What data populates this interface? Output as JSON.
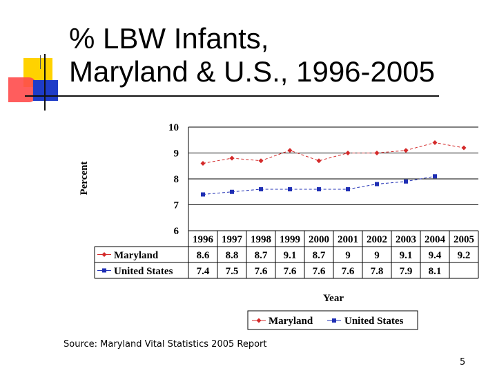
{
  "slide": {
    "title_line1": "% LBW Infants,",
    "title_line2": "Maryland & U.S., 1996-2005",
    "source": "Source:  Maryland Vital Statistics 2005 Report",
    "page_number": "5"
  },
  "chart_data": {
    "type": "line",
    "title": "",
    "xlabel": "Year",
    "ylabel": "Percent",
    "ylim": [
      6,
      10
    ],
    "yticks": [
      "6",
      "7",
      "8",
      "9",
      "10"
    ],
    "grid": true,
    "categories": [
      "1996",
      "1997",
      "1998",
      "1999",
      "2000",
      "2001",
      "2002",
      "2003",
      "2004",
      "2005"
    ],
    "series": [
      {
        "name": "Maryland",
        "color": "#d42a2a",
        "marker": "diamond",
        "values": [
          8.6,
          8.8,
          8.7,
          9.1,
          8.7,
          9.0,
          9.0,
          9.1,
          9.4,
          9.2
        ],
        "labels": [
          "8.6",
          "8.8",
          "8.7",
          "9.1",
          "8.7",
          "9",
          "9",
          "9.1",
          "9.4",
          "9.2"
        ]
      },
      {
        "name": "United States",
        "color": "#1f2fb4",
        "marker": "square",
        "values": [
          7.4,
          7.5,
          7.6,
          7.6,
          7.6,
          7.6,
          7.8,
          7.9,
          8.1,
          null
        ],
        "labels": [
          "7.4",
          "7.5",
          "7.6",
          "7.6",
          "7.6",
          "7.6",
          "7.8",
          "7.9",
          "8.1",
          ""
        ]
      }
    ],
    "data_table": true,
    "legend_position": "bottom"
  }
}
